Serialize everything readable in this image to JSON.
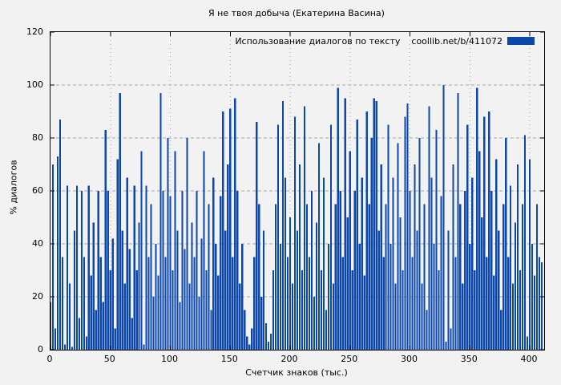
{
  "title": "Я не твоя добыча (Екатерина Васина)",
  "legend": {
    "text": "Использование диалогов по тексту",
    "url": "coollib.net/b/411072",
    "swatch_color": "#0c47aa"
  },
  "colors": {
    "bar": "#0c47aa",
    "background": "#f2f2f2",
    "grid": "#a8a8a8",
    "border": "#000000"
  },
  "chart_data": {
    "type": "bar",
    "title": "Я не твоя добыча (Екатерина Васина)",
    "xlabel": "Счетчик знаков (тыс.)",
    "ylabel": "% диалогов",
    "xlim": [
      0,
      412
    ],
    "ylim": [
      0,
      120
    ],
    "x_ticks": [
      0,
      50,
      100,
      150,
      200,
      250,
      300,
      350,
      400
    ],
    "y_ticks": [
      0,
      20,
      40,
      60,
      80,
      100,
      120
    ],
    "grid": true,
    "legend_position": "top-right",
    "series_name": "Использование диалогов по тексту coollib.net/b/411072",
    "x_start": 0,
    "x_step": 2,
    "values": [
      18,
      70,
      8,
      73,
      87,
      35,
      2,
      62,
      25,
      1,
      45,
      62,
      12,
      60,
      35,
      5,
      62,
      28,
      48,
      15,
      60,
      35,
      18,
      83,
      60,
      30,
      42,
      8,
      72,
      97,
      45,
      25,
      65,
      38,
      12,
      62,
      30,
      48,
      75,
      2,
      62,
      35,
      55,
      20,
      40,
      28,
      97,
      60,
      35,
      80,
      58,
      30,
      75,
      45,
      18,
      60,
      38,
      80,
      25,
      48,
      35,
      60,
      20,
      42,
      75,
      30,
      55,
      15,
      65,
      40,
      28,
      58,
      90,
      45,
      70,
      91,
      35,
      95,
      60,
      25,
      40,
      15,
      5,
      2,
      8,
      35,
      86,
      55,
      20,
      45,
      10,
      3,
      6,
      30,
      55,
      85,
      40,
      94,
      65,
      35,
      50,
      25,
      88,
      45,
      70,
      30,
      92,
      55,
      35,
      60,
      20,
      48,
      78,
      30,
      65,
      15,
      40,
      85,
      25,
      55,
      99,
      60,
      35,
      95,
      50,
      75,
      30,
      60,
      87,
      40,
      65,
      28,
      90,
      55,
      80,
      95,
      94,
      45,
      70,
      35,
      55,
      85,
      40,
      65,
      25,
      78,
      50,
      30,
      88,
      93,
      60,
      35,
      70,
      45,
      80,
      25,
      55,
      15,
      92,
      65,
      40,
      83,
      30,
      58,
      100,
      3,
      45,
      8,
      70,
      35,
      97,
      55,
      25,
      60,
      85,
      40,
      65,
      30,
      99,
      75,
      50,
      88,
      35,
      90,
      60,
      28,
      72,
      45,
      15,
      55,
      80,
      35,
      62,
      25,
      48,
      70,
      30,
      55,
      81,
      5,
      72,
      40,
      28,
      55,
      35,
      33
    ]
  }
}
